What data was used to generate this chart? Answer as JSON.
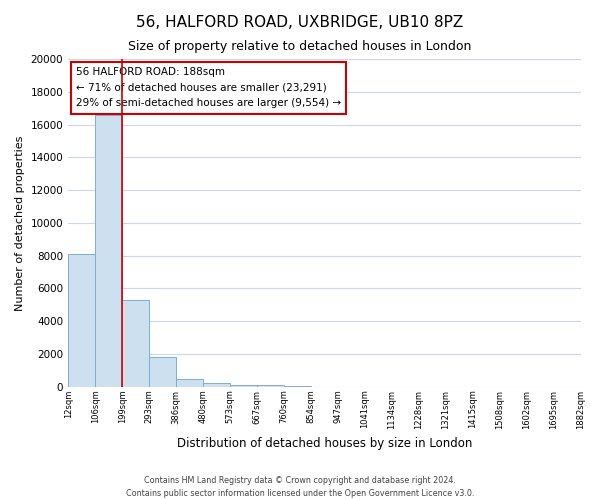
{
  "title": "56, HALFORD ROAD, UXBRIDGE, UB10 8PZ",
  "subtitle": "Size of property relative to detached houses in London",
  "xlabel": "Distribution of detached houses by size in London",
  "ylabel": "Number of detached properties",
  "bar_values": [
    8100,
    16600,
    5300,
    1800,
    480,
    200,
    130,
    100,
    60,
    0,
    0,
    0,
    0,
    0,
    0,
    0,
    0,
    0,
    0
  ],
  "bar_labels": [
    "12sqm",
    "106sqm",
    "199sqm",
    "293sqm",
    "386sqm",
    "480sqm",
    "573sqm",
    "667sqm",
    "760sqm",
    "854sqm",
    "947sqm",
    "1041sqm",
    "1134sqm",
    "1228sqm",
    "1321sqm",
    "1415sqm",
    "1508sqm",
    "1602sqm",
    "1695sqm",
    "1882sqm"
  ],
  "bar_color": "#cce0f0",
  "bar_edge_color": "#7ab0d4",
  "vline_color": "#cc0000",
  "ylim": [
    0,
    20000
  ],
  "yticks": [
    0,
    2000,
    4000,
    6000,
    8000,
    10000,
    12000,
    14000,
    16000,
    18000,
    20000
  ],
  "annotation_title": "56 HALFORD ROAD: 188sqm",
  "annotation_line1": "← 71% of detached houses are smaller (23,291)",
  "annotation_line2": "29% of semi-detached houses are larger (9,554) →",
  "annotation_box_color": "#ffffff",
  "annotation_box_edge": "#cc0000",
  "footer_line1": "Contains HM Land Registry data © Crown copyright and database right 2024.",
  "footer_line2": "Contains public sector information licensed under the Open Government Licence v3.0.",
  "background_color": "#ffffff",
  "grid_color": "#c8d8ea"
}
